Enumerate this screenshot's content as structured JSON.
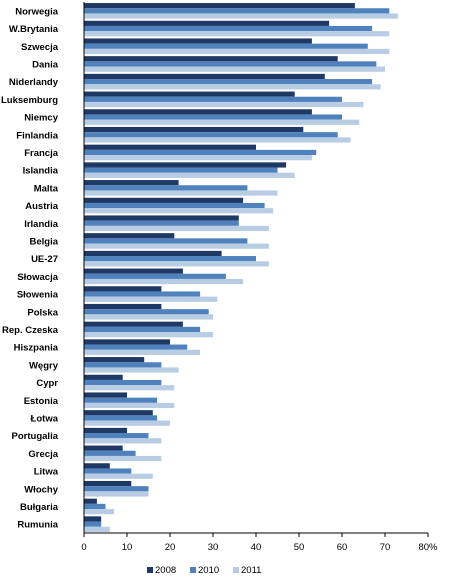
{
  "chart_data": {
    "type": "bar",
    "orientation": "horizontal",
    "title": "",
    "xlabel": "",
    "ylabel": "",
    "xlim": [
      0,
      80
    ],
    "x_ticks": [
      "0",
      "10",
      "20",
      "30",
      "40",
      "50",
      "60",
      "70",
      "80%"
    ],
    "grid": false,
    "legend_position": "bottom",
    "categories": [
      "Norwegia",
      "W.Brytania",
      "Szwecja",
      "Dania",
      "Niderlandy",
      "Luksemburg",
      "Niemcy",
      "Finlandia",
      "Francja",
      "Islandia",
      "Malta",
      "Austria",
      "Irlandia",
      "Belgia",
      "UE-27",
      "Słowacja",
      "Słowenia",
      "Polska",
      "Rep. Czeska",
      "Hiszpania",
      "Węgry",
      "Cypr",
      "Estonia",
      "Łotwa",
      "Portugalia",
      "Grecja",
      "Litwa",
      "Włochy",
      "Bułgaria",
      "Rumunia"
    ],
    "series": [
      {
        "name": "2008",
        "color": "#1f3864",
        "values": [
          63,
          57,
          53,
          59,
          56,
          49,
          53,
          51,
          40,
          47,
          22,
          37,
          36,
          21,
          32,
          23,
          18,
          18,
          23,
          20,
          14,
          9,
          10,
          16,
          10,
          9,
          6,
          11,
          3,
          4
        ]
      },
      {
        "name": "2010",
        "color": "#4f81bd",
        "values": [
          71,
          67,
          66,
          68,
          67,
          60,
          60,
          59,
          54,
          45,
          38,
          42,
          36,
          38,
          40,
          33,
          27,
          29,
          27,
          24,
          18,
          18,
          17,
          17,
          15,
          12,
          11,
          15,
          5,
          4
        ]
      },
      {
        "name": "2011",
        "color": "#b8cce4",
        "values": [
          73,
          71,
          71,
          70,
          69,
          65,
          64,
          62,
          53,
          49,
          45,
          44,
          43,
          43,
          43,
          37,
          31,
          30,
          30,
          27,
          22,
          21,
          21,
          20,
          18,
          18,
          16,
          15,
          7,
          6
        ]
      }
    ]
  }
}
